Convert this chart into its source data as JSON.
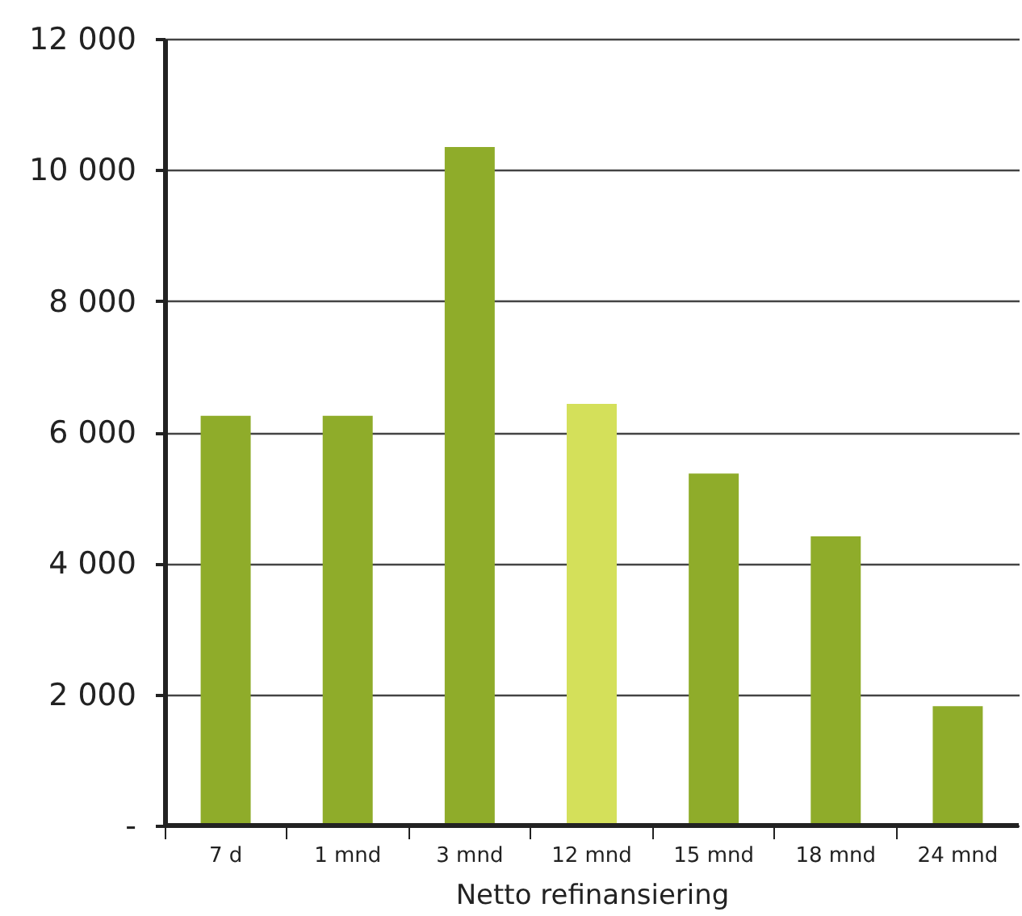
{
  "chart_data": {
    "type": "bar",
    "xlabel": "Netto refinansiering",
    "categories": [
      "7 d",
      "1 mnd",
      "3 mnd",
      "12 mnd",
      "15 mnd",
      "18 mnd",
      "24 mnd"
    ],
    "values": [
      6250,
      6250,
      10350,
      6430,
      5370,
      4410,
      1820
    ],
    "colors": [
      "#8fac2a",
      "#8fac2a",
      "#8fac2a",
      "#d4e05a",
      "#8fac2a",
      "#8fac2a",
      "#8fac2a"
    ],
    "ylim": [
      0,
      12000
    ],
    "yticks": [
      {
        "value": 0,
        "label": "-"
      },
      {
        "value": 2000,
        "label": "2 000"
      },
      {
        "value": 4000,
        "label": "4 000"
      },
      {
        "value": 6000,
        "label": "6 000"
      },
      {
        "value": 8000,
        "label": "8 000"
      },
      {
        "value": 10000,
        "label": "10 000"
      },
      {
        "value": 12000,
        "label": "12 000"
      }
    ],
    "grid": "y"
  }
}
